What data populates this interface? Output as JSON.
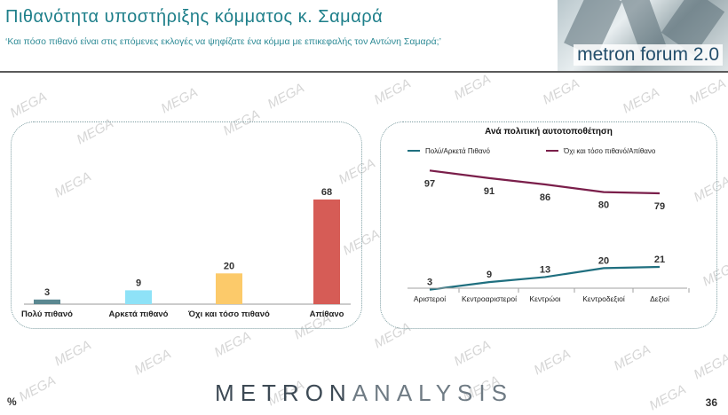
{
  "header": {
    "title": "Πιθανότητα υποστήριξης κόμματος κ. Σαμαρά",
    "subtitle": "‘Και πόσο πιθανό είναι στις επόμενες εκλογές να ψηφίζατε ένα κόμμα με επικεφαλής τον Αντώνη Σαμαρά;’",
    "logo_text": "metron forum 2.0"
  },
  "watermark_text": "MEGA",
  "chart_data": [
    {
      "type": "bar",
      "categories": [
        "Πολύ πιθανό",
        "Αρκετά πιθανό",
        "Όχι και τόσο πιθανό",
        "Απίθανο"
      ],
      "values": [
        3,
        9,
        20,
        68
      ],
      "colors": [
        "#5b8891",
        "#8ee2f7",
        "#fcca6a",
        "#d65c56"
      ],
      "ylim": [
        0,
        68
      ]
    },
    {
      "type": "line",
      "title": "Ανά πολιτική αυτοτοποθέτηση",
      "categories": [
        "Αριστεροί",
        "Κεντροαριστεροί",
        "Κεντρώοι",
        "Κεντροδεξιοί",
        "Δεξιοί"
      ],
      "series": [
        {
          "name": "Πολύ/Αρκετά Πιθανό",
          "values": [
            3,
            9,
            13,
            20,
            21
          ],
          "color": "#1f6f7f"
        },
        {
          "name": "Όχι και τόσο πιθανό/Απίθανο",
          "values": [
            97,
            91,
            86,
            80,
            79
          ],
          "color": "#7a1e4a"
        }
      ],
      "ylim": [
        0,
        100
      ],
      "legend": "top"
    }
  ],
  "footer": {
    "brand_left": "METRON",
    "brand_right": "ANALYSIS",
    "percent_sign": "%",
    "page_number": "36"
  }
}
